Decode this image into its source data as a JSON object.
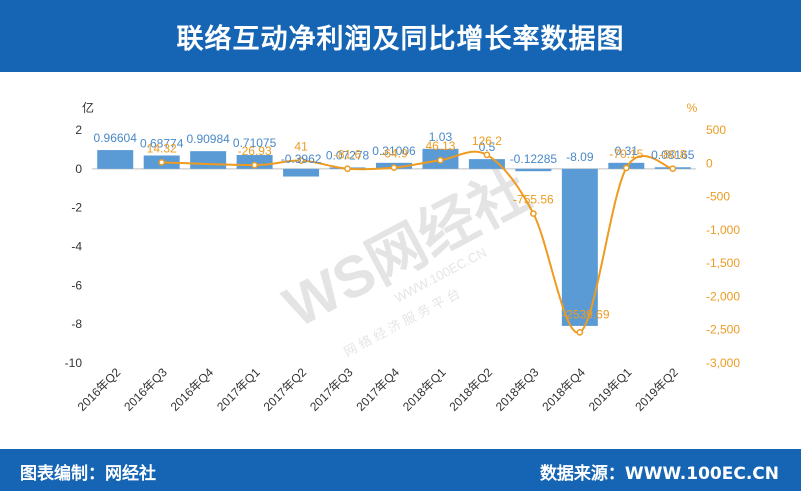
{
  "header": {
    "title": "联络互动净利润及同比增长率数据图"
  },
  "footer": {
    "credit": "图表编制：网经社",
    "source": "数据来源：WWW.100EC.CN"
  },
  "watermark": {
    "logo_text": "WS网经社",
    "url_text": "WWW.100EC.CN",
    "sub_text": "网 络 经 济 服 务 平 台"
  },
  "colors": {
    "bar": "#5b9bd5",
    "line": "#ed9b21",
    "header_bg": "#1565b4"
  },
  "chart_data": {
    "type": "bar",
    "categories": [
      "2016年Q2",
      "2016年Q3",
      "2016年Q4",
      "2017年Q1",
      "2017年Q2",
      "2017年Q3",
      "2017年Q4",
      "2018年Q1",
      "2018年Q2",
      "2018年Q3",
      "2018年Q4",
      "2019年Q1",
      "2019年Q2"
    ],
    "series": [
      {
        "kind": "bar",
        "axis": "left",
        "values": [
          0.96604,
          0.68774,
          0.90984,
          0.71075,
          -0.3962,
          0.07278,
          0.31006,
          1.03,
          0.5,
          -0.12285,
          -8.09,
          0.31,
          0.08165
        ],
        "labels": [
          "0.96604",
          "0.68774",
          "0.90984",
          "0.71075",
          "-0.3962",
          "0.07278",
          "0.31006",
          "1.03",
          "0.5",
          "-0.12285",
          "-8.09",
          "0.31",
          "0.08165"
        ]
      },
      {
        "kind": "line",
        "axis": "right",
        "values": [
          null,
          14.32,
          null,
          -26.93,
          41,
          -81.6,
          -64.9,
          46.13,
          126.2,
          -755.56,
          -2539.69,
          -70.15,
          -80.8
        ],
        "labels": [
          "",
          "14.32",
          "",
          "-26.93",
          "41",
          "-81.6",
          "-64.9",
          "46.13",
          "126.2",
          "-755.56",
          "-2539.69",
          "-70.15",
          "-80.8"
        ]
      }
    ],
    "y_left": {
      "unit_label": "亿",
      "ylim": [
        -10,
        2
      ],
      "ticks": [
        2,
        0,
        -2,
        -4,
        -6,
        -8,
        -10
      ]
    },
    "y_right": {
      "unit_label": "%",
      "ylim": [
        -3000,
        500
      ],
      "ticks": [
        "500",
        "0",
        "-500",
        "-1,000",
        "-1,500",
        "-2,000",
        "-2,500",
        "-3,000"
      ],
      "tick_values": [
        500,
        0,
        -500,
        -1000,
        -1500,
        -2000,
        -2500,
        -3000
      ]
    },
    "grid": false,
    "legend": "none"
  }
}
